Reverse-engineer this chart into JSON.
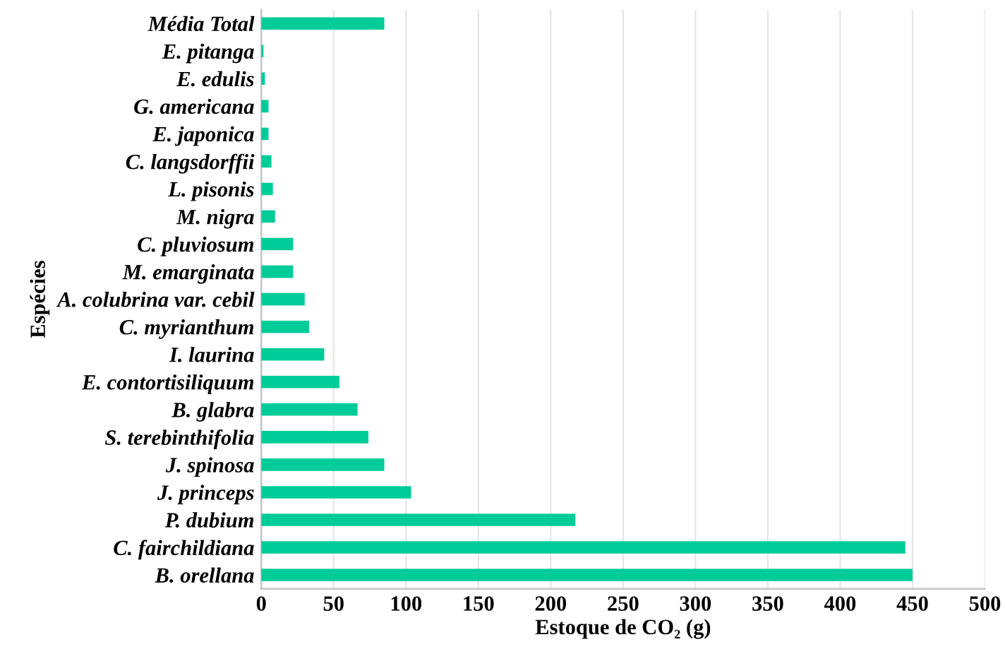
{
  "chart_data": {
    "type": "bar",
    "orientation": "horizontal",
    "xlabel": "Estoque de CO₂ (g)",
    "ylabel": "Espécies",
    "categories": [
      "Média Total",
      "E. pitanga",
      "E. edulis",
      "G. americana",
      "E. japonica",
      "C. langsdorffii",
      "L. pisonis",
      "M. nigra",
      "C. pluviosum",
      "M. emarginata",
      "A. colubrina var. cebil",
      "C. myrianthum",
      "I. laurina",
      "E. contortisiliquum",
      "B. glabra",
      "S. terebinthifolia",
      "J. spinosa",
      "J. princeps",
      "P. dubium",
      "C. fairchildiana",
      "B. orellana"
    ],
    "values": [
      85,
      1.5,
      2.5,
      5,
      5,
      7,
      8,
      9.5,
      22,
      22,
      30,
      33,
      43.5,
      54,
      66.5,
      74,
      85,
      103.5,
      217,
      445,
      450
    ],
    "color": "#00cc99",
    "xlim": [
      0,
      500
    ],
    "xticks": [
      0,
      50,
      100,
      150,
      200,
      250,
      300,
      350,
      400,
      450,
      500
    ],
    "grid": "x"
  }
}
